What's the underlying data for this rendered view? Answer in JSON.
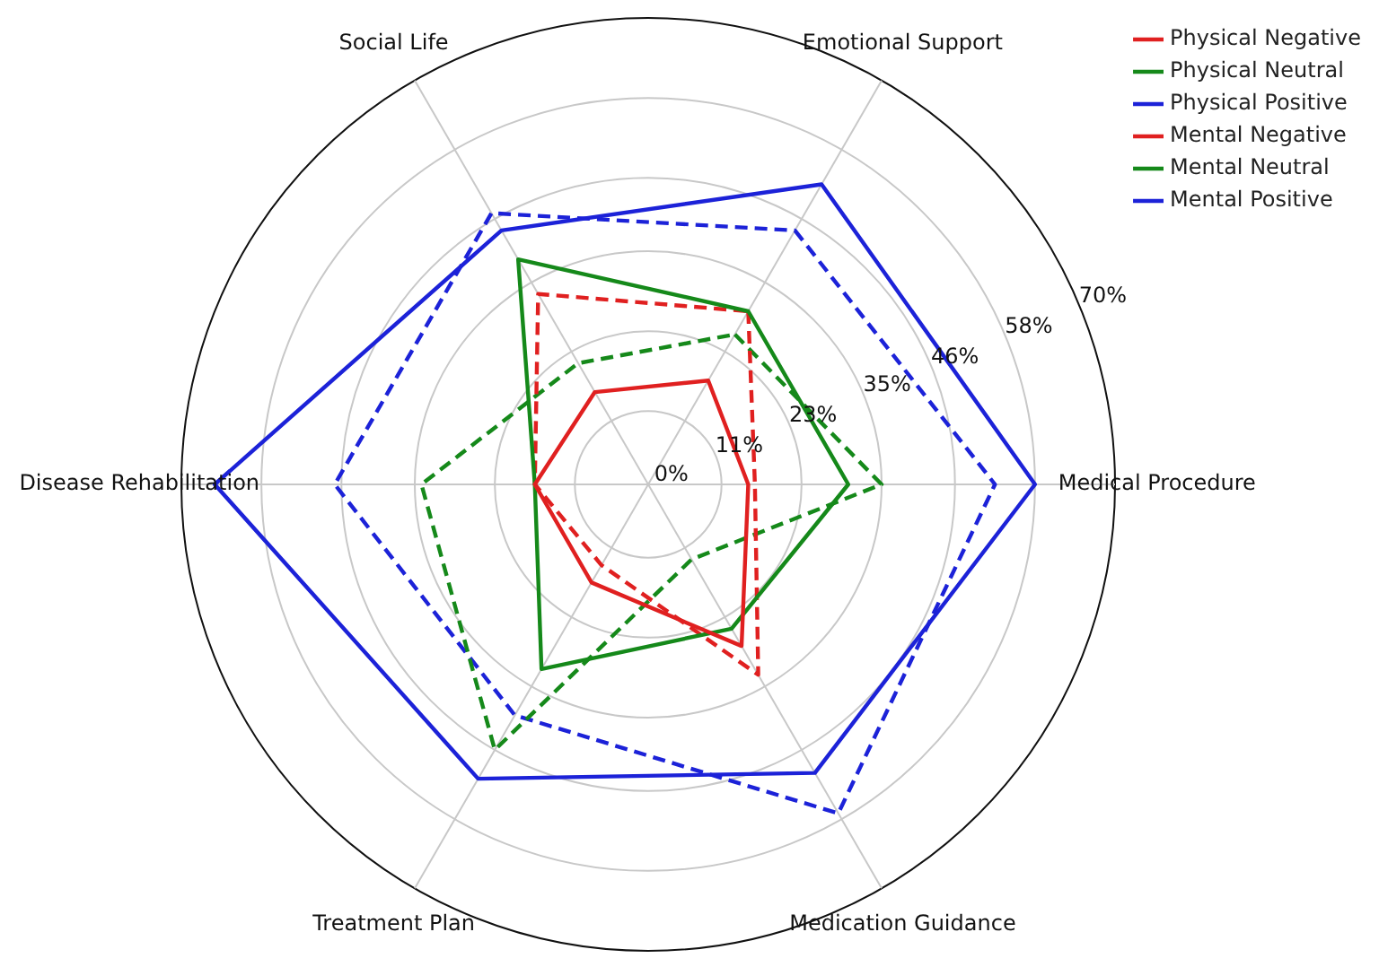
{
  "chart_data": {
    "type": "radar",
    "categories": [
      "Emotional Support",
      "Medical Procedure",
      "Medication Guidance",
      "Treatment Plan",
      "Disease Rehabilitation",
      "Social Life"
    ],
    "series": [
      {
        "name": "Physical Negative",
        "color": "#e02020",
        "line_style": "solid",
        "values": [
          18,
          15,
          28,
          17,
          17,
          16
        ]
      },
      {
        "name": "Physical Neutral",
        "color": "#15891a",
        "line_style": "solid",
        "values": [
          30,
          30,
          25,
          32,
          17,
          39
        ]
      },
      {
        "name": "Physical Positive",
        "color": "#1c22d8",
        "line_style": "solid",
        "values": [
          52,
          58,
          50,
          51,
          65,
          44
        ]
      },
      {
        "name": "Mental Negative",
        "color": "#e02020",
        "line_style": "dashed",
        "values": [
          30,
          16,
          33,
          14,
          17,
          33
        ]
      },
      {
        "name": "Mental Neutral",
        "color": "#15891a",
        "line_style": "dashed",
        "values": [
          26,
          35,
          13,
          46,
          34,
          21
        ]
      },
      {
        "name": "Mental Positive",
        "color": "#1c22d8",
        "line_style": "dashed",
        "values": [
          44,
          52,
          57,
          40,
          47,
          47
        ]
      }
    ],
    "ylim": [
      0,
      70
    ],
    "yticks": [
      {
        "value": 0,
        "label": "0%"
      },
      {
        "value": 11,
        "label": "11%"
      },
      {
        "value": 23,
        "label": "23%"
      },
      {
        "value": 35,
        "label": "35%"
      },
      {
        "value": 46,
        "label": "46%"
      },
      {
        "value": 58,
        "label": "58%"
      },
      {
        "value": 70,
        "label": "70%"
      }
    ],
    "grid": true,
    "legend": "top right",
    "marker": "none"
  }
}
